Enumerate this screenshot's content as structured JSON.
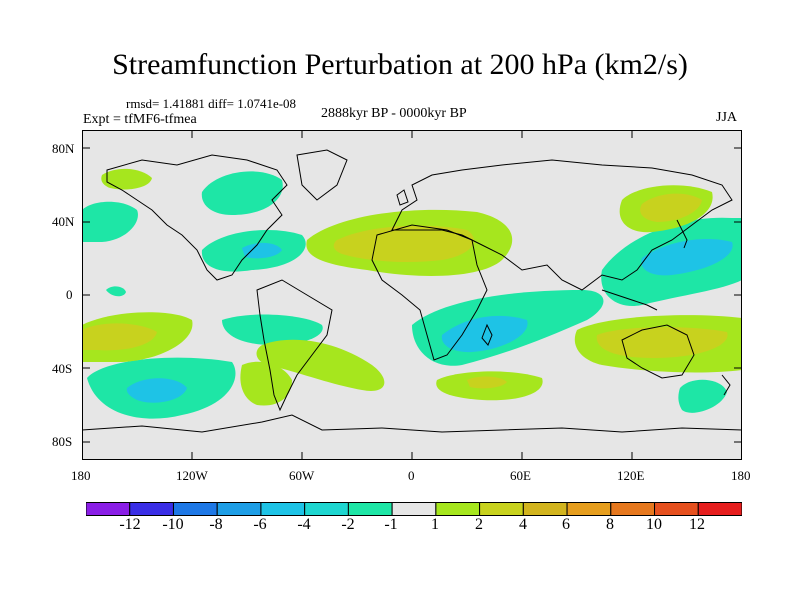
{
  "title": "Streamfunction Perturbation at 200 hPa (km2/s)",
  "stats_line": "rmsd= 1.41881 diff= 1.0741e-08",
  "experiment_label": "Expt = tfMF6-tfmea",
  "period_label": "2888kyr BP - 0000kyr BP",
  "season_label": "JJA",
  "map": {
    "background_color": "#e6e6e6",
    "lat_ticks": [
      "80N",
      "40N",
      "0",
      "40S",
      "80S"
    ],
    "lon_ticks": [
      "180",
      "120W",
      "60W",
      "0",
      "60E",
      "120E",
      "180"
    ]
  },
  "colorbar": {
    "colors": [
      "#8a1ee6",
      "#3a2ee6",
      "#1e78e6",
      "#1e9ee6",
      "#1ec3e6",
      "#1ed6d0",
      "#1ee6a6",
      "#e6e6e6",
      "#a6e61e",
      "#c8d21e",
      "#d2b41e",
      "#e69e1e",
      "#e6781e",
      "#e6501e",
      "#e61e1e"
    ],
    "labels": [
      "-12",
      "-10",
      "-8",
      "-6",
      "-4",
      "-2",
      "-1",
      "1",
      "2",
      "4",
      "6",
      "8",
      "10",
      "12"
    ]
  }
}
